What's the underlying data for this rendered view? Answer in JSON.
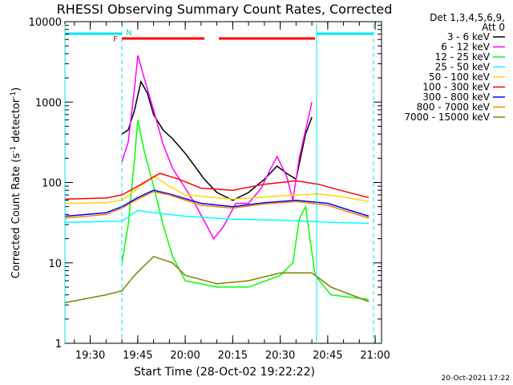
{
  "chart_data": {
    "type": "line",
    "title": "RHESSI Observing Summary Count Rates, Corrected",
    "xlabel": "Start Time (28-Oct-02 19:22:22)",
    "ylabel_main": "Corrected Count Rate (s",
    "ylabel_sup": "-1",
    "ylabel_tail": " detector",
    "ylabel_end": ")",
    "yscale": "log",
    "ylim": [
      1,
      10000
    ],
    "xlim_minutes": [
      "19:22",
      "21:02"
    ],
    "x_tick_labels": [
      "19:30",
      "19:45",
      "20:00",
      "20:15",
      "20:30",
      "20:45",
      "21:00"
    ],
    "y_tick_labels": [
      "1",
      "10",
      "100",
      "1000",
      "10000"
    ],
    "legend_header": [
      "Det 1,3,4,5,6,9,",
      "Att 0"
    ],
    "legend_position": "right",
    "series": [
      {
        "name": "3 - 6 keV",
        "color": "#000000",
        "points": [
          [
            "19:40",
            400
          ],
          [
            "19:42",
            450
          ],
          [
            "19:44",
            800
          ],
          [
            "19:46",
            1800
          ],
          [
            "19:48",
            1300
          ],
          [
            "19:50",
            700
          ],
          [
            "19:53",
            450
          ],
          [
            "19:56",
            350
          ],
          [
            "20:00",
            230
          ],
          [
            "20:03",
            160
          ],
          [
            "20:06",
            110
          ],
          [
            "20:10",
            75
          ],
          [
            "20:15",
            60
          ],
          [
            "20:20",
            75
          ],
          [
            "20:25",
            110
          ],
          [
            "20:29",
            160
          ],
          [
            "20:32",
            130
          ],
          [
            "20:35",
            110
          ],
          [
            "20:38",
            400
          ],
          [
            "20:40",
            650
          ]
        ]
      },
      {
        "name": "6 - 12 keV",
        "color": "#ff00ff",
        "points": [
          [
            "19:40",
            180
          ],
          [
            "19:42",
            320
          ],
          [
            "19:44",
            1500
          ],
          [
            "19:45",
            3800
          ],
          [
            "19:47",
            2000
          ],
          [
            "19:50",
            800
          ],
          [
            "19:53",
            300
          ],
          [
            "19:56",
            150
          ],
          [
            "20:00",
            85
          ],
          [
            "20:03",
            55
          ],
          [
            "20:07",
            28
          ],
          [
            "20:09",
            20
          ],
          [
            "20:12",
            28
          ],
          [
            "20:16",
            55
          ],
          [
            "20:20",
            55
          ],
          [
            "20:24",
            85
          ],
          [
            "20:27",
            150
          ],
          [
            "20:29",
            210
          ],
          [
            "20:32",
            120
          ],
          [
            "20:34",
            60
          ],
          [
            "20:36",
            200
          ],
          [
            "20:38",
            450
          ],
          [
            "20:40",
            1000
          ]
        ]
      },
      {
        "name": "12 - 25 keV",
        "color": "#00ff00",
        "points": [
          [
            "19:40",
            10
          ],
          [
            "19:42",
            30
          ],
          [
            "19:44",
            200
          ],
          [
            "19:45",
            600
          ],
          [
            "19:47",
            250
          ],
          [
            "19:50",
            90
          ],
          [
            "19:53",
            30
          ],
          [
            "19:56",
            12
          ],
          [
            "20:00",
            6
          ],
          [
            "20:10",
            5
          ],
          [
            "20:20",
            5
          ],
          [
            "20:30",
            7
          ],
          [
            "20:34",
            10
          ],
          [
            "20:36",
            35
          ],
          [
            "20:38",
            50
          ],
          [
            "20:41",
            7
          ],
          [
            "20:46",
            4
          ],
          [
            "20:58",
            3.5
          ]
        ]
      },
      {
        "name": "25 - 50 keV",
        "color": "#00ffff",
        "points": [
          [
            "19:22",
            32
          ],
          [
            "19:40",
            33
          ],
          [
            "19:45",
            45
          ],
          [
            "19:50",
            42
          ],
          [
            "20:00",
            38
          ],
          [
            "20:15",
            35
          ],
          [
            "20:30",
            34
          ],
          [
            "20:45",
            32
          ],
          [
            "20:58",
            31
          ]
        ]
      },
      {
        "name": "50 - 100 keV",
        "color": "#ffd700",
        "points": [
          [
            "19:22",
            55
          ],
          [
            "19:35",
            56
          ],
          [
            "19:40",
            60
          ],
          [
            "19:45",
            85
          ],
          [
            "19:50",
            120
          ],
          [
            "19:55",
            90
          ],
          [
            "20:00",
            70
          ],
          [
            "20:15",
            62
          ],
          [
            "20:30",
            68
          ],
          [
            "20:42",
            72
          ],
          [
            "20:50",
            66
          ],
          [
            "20:58",
            58
          ]
        ]
      },
      {
        "name": "100 - 300 keV",
        "color": "#ff0000",
        "points": [
          [
            "19:22",
            62
          ],
          [
            "19:35",
            64
          ],
          [
            "19:40",
            70
          ],
          [
            "19:45",
            90
          ],
          [
            "19:52",
            130
          ],
          [
            "19:58",
            110
          ],
          [
            "20:05",
            85
          ],
          [
            "20:15",
            80
          ],
          [
            "20:25",
            95
          ],
          [
            "20:35",
            105
          ],
          [
            "20:42",
            95
          ],
          [
            "20:50",
            78
          ],
          [
            "20:58",
            65
          ]
        ]
      },
      {
        "name": "300 - 800 keV",
        "color": "#0000ff",
        "points": [
          [
            "19:22",
            38
          ],
          [
            "19:35",
            42
          ],
          [
            "19:40",
            50
          ],
          [
            "19:45",
            65
          ],
          [
            "19:50",
            80
          ],
          [
            "19:55",
            72
          ],
          [
            "20:05",
            55
          ],
          [
            "20:15",
            50
          ],
          [
            "20:25",
            56
          ],
          [
            "20:35",
            60
          ],
          [
            "20:45",
            55
          ],
          [
            "20:58",
            38
          ]
        ]
      },
      {
        "name": "800 - 7000 keV",
        "color": "#ff8000",
        "points": [
          [
            "19:22",
            36
          ],
          [
            "19:35",
            40
          ],
          [
            "19:40",
            48
          ],
          [
            "19:45",
            62
          ],
          [
            "19:50",
            77
          ],
          [
            "19:55",
            70
          ],
          [
            "20:05",
            52
          ],
          [
            "20:15",
            48
          ],
          [
            "20:25",
            54
          ],
          [
            "20:35",
            58
          ],
          [
            "20:45",
            52
          ],
          [
            "20:58",
            36
          ]
        ]
      },
      {
        "name": "7000 - 15000 keV",
        "color": "#808000",
        "points": [
          [
            "19:22",
            3.2
          ],
          [
            "19:35",
            4
          ],
          [
            "19:40",
            4.5
          ],
          [
            "19:44",
            7
          ],
          [
            "19:50",
            12
          ],
          [
            "19:56",
            10
          ],
          [
            "20:00",
            7
          ],
          [
            "20:10",
            5.5
          ],
          [
            "20:20",
            6
          ],
          [
            "20:30",
            7.5
          ],
          [
            "20:40",
            7.5
          ],
          [
            "20:46",
            5
          ],
          [
            "20:58",
            3.3
          ]
        ]
      }
    ],
    "flag_labels": [
      "F",
      "N"
    ],
    "timestamp": "20-Oct-2021 17:22"
  }
}
